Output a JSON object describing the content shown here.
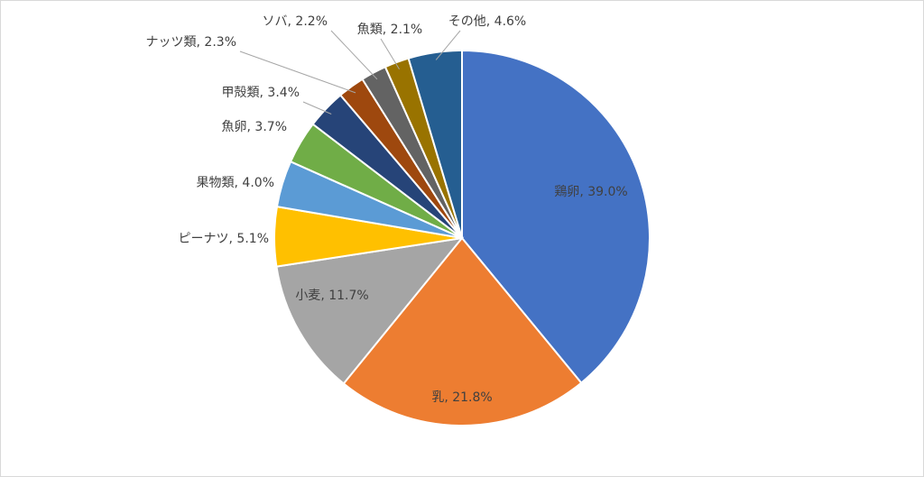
{
  "chart_data": {
    "type": "pie",
    "categories": [
      "鶏卵",
      "乳",
      "小麦",
      "ピーナツ",
      "果物類",
      "魚卵",
      "甲殻類",
      "ナッツ類",
      "ソバ",
      "魚類",
      "その他"
    ],
    "values": [
      39.0,
      21.8,
      11.7,
      5.1,
      4.0,
      3.7,
      3.4,
      2.3,
      2.2,
      2.1,
      4.6
    ],
    "value_labels": [
      ", 39.0%",
      ", 21.8%",
      ", 11.7%",
      ", 5.1%",
      ", 4.0%",
      ", 3.7%",
      ", 3.4%",
      ", 2.3%",
      ", 2.2%",
      ", 2.1%",
      ", 4.6%"
    ],
    "colors": [
      "#4472c4",
      "#ed7d31",
      "#a5a5a5",
      "#ffc000",
      "#5b9bd5",
      "#70ad47",
      "#264478",
      "#9e480e",
      "#636363",
      "#997300",
      "#255e91"
    ]
  }
}
